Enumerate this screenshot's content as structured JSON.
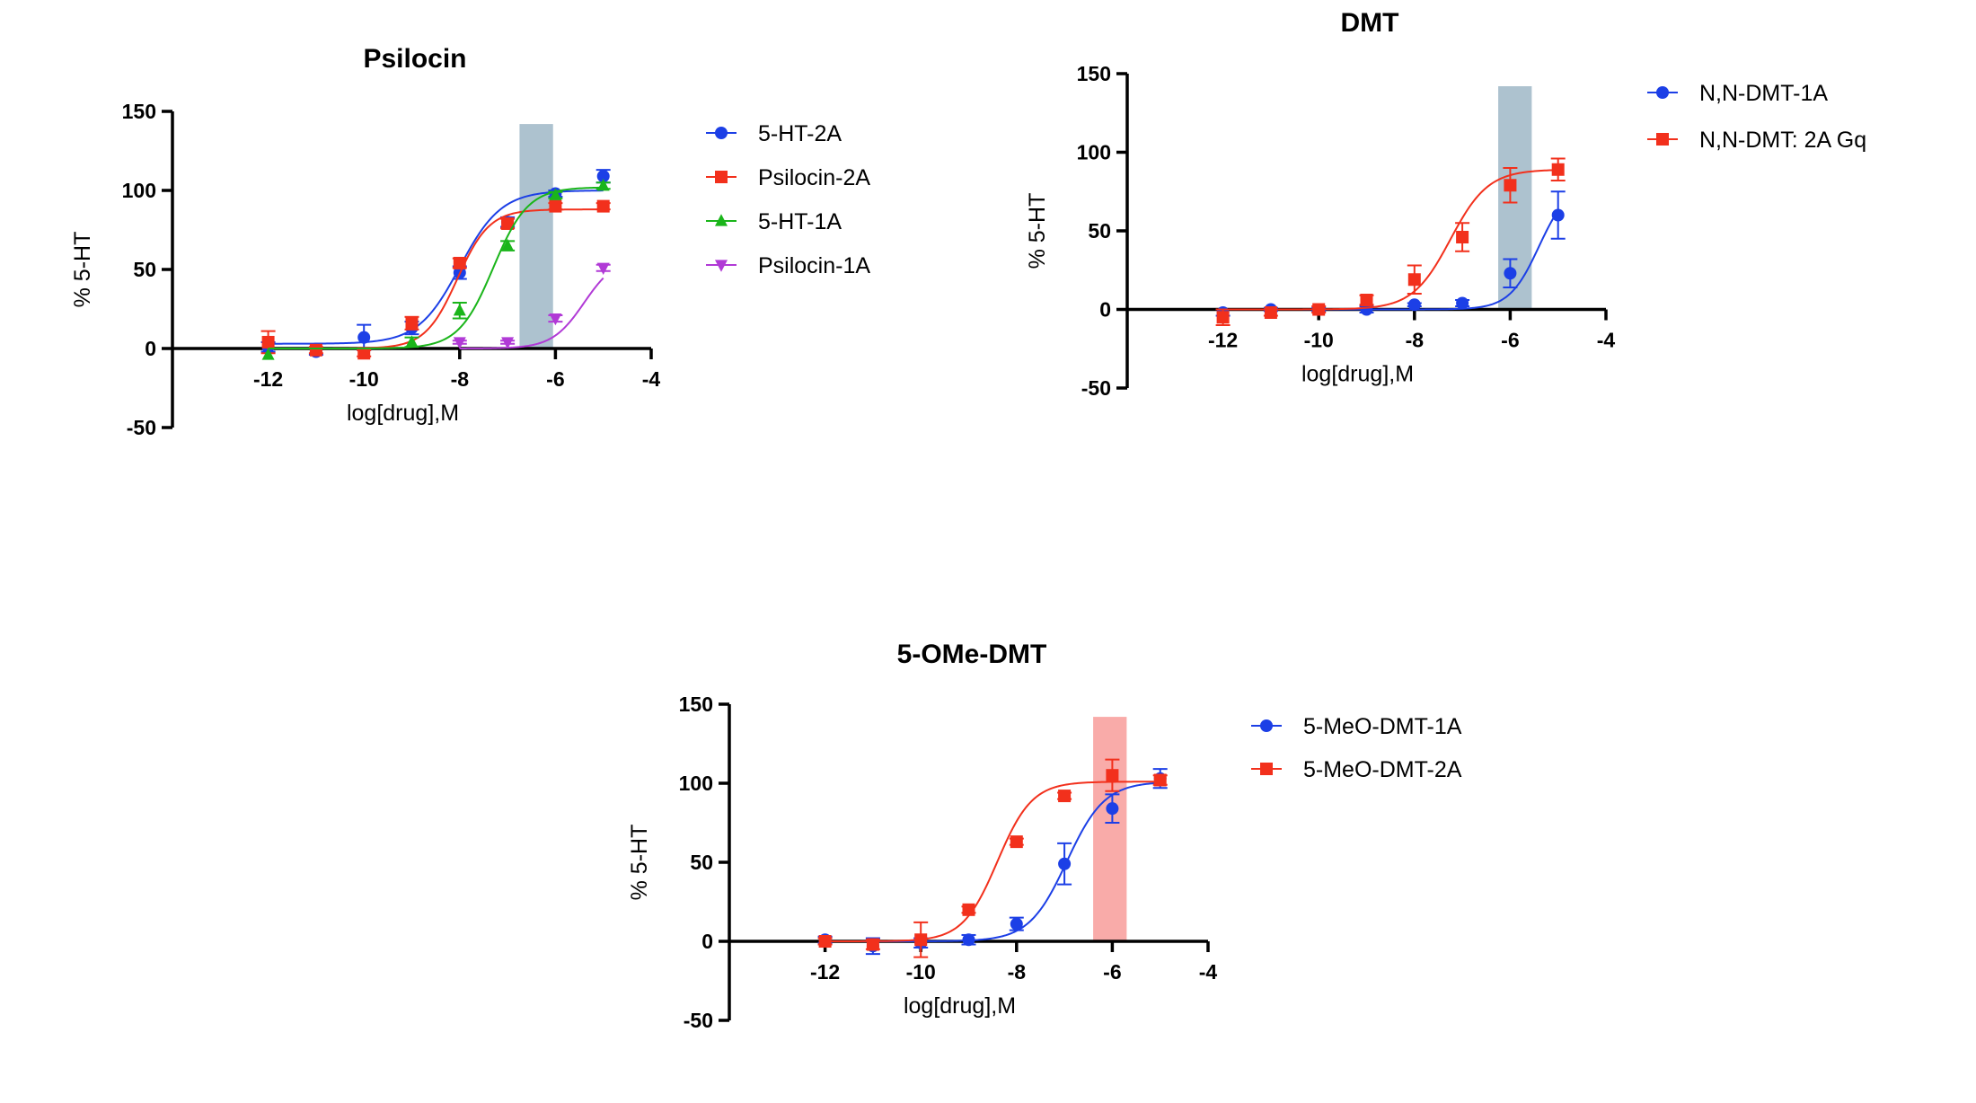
{
  "chart_data": [
    {
      "type": "scatter",
      "title": "Psilocin",
      "xlabel": "log[drug],M",
      "ylabel": "% 5-HT",
      "xlim": [
        -14,
        -4
      ],
      "ylim": [
        -50,
        150
      ],
      "x_ticks": [
        "-12",
        "-10",
        "-8",
        "-6",
        "-4"
      ],
      "y_ticks": [
        "150",
        "100",
        "50",
        "0",
        "-50"
      ],
      "highlight_band": {
        "x_range": [
          -6.75,
          -6.05
        ],
        "color": "#a9bfcc"
      },
      "legend_position": "right",
      "series": [
        {
          "name": "5-HT-2A",
          "color": "#1c3fe6",
          "marker": "circle",
          "x": [
            -12,
            -11,
            -10,
            -9,
            -8,
            -7,
            -6,
            -5
          ],
          "y": [
            1,
            -2,
            7,
            13,
            48,
            80,
            98,
            109
          ],
          "err": [
            3,
            2,
            8,
            4,
            4,
            3,
            2,
            4
          ],
          "fit": {
            "bottom": 3,
            "top": 100,
            "logEC50": -8.0,
            "hill": 1.0
          }
        },
        {
          "name": "Psilocin-2A",
          "color": "#f2301c",
          "marker": "square",
          "x": [
            -12,
            -11,
            -10,
            -9,
            -8,
            -7,
            -6,
            -5
          ],
          "y": [
            4,
            -1,
            -3,
            16,
            54,
            79,
            90,
            90
          ],
          "err": [
            7,
            2,
            2,
            4,
            3,
            3,
            2,
            2
          ],
          "fit": {
            "bottom": 0,
            "top": 88,
            "logEC50": -8.05,
            "hill": 1.3
          }
        },
        {
          "name": "5-HT-1A",
          "color": "#1ab51a",
          "marker": "triangle",
          "x": [
            -12,
            -9,
            -8,
            -7,
            -6,
            -5
          ],
          "y": [
            -4,
            4,
            24,
            65,
            97,
            103
          ],
          "err": [
            0,
            3,
            5,
            3,
            2,
            2
          ],
          "fit": {
            "bottom": 0,
            "top": 102,
            "logEC50": -7.3,
            "hill": 1.2
          }
        },
        {
          "name": "Psilocin-1A",
          "color": "#b13ad6",
          "marker": "triangle-down",
          "x": [
            -8,
            -7,
            -6,
            -5
          ],
          "y": [
            4,
            4,
            19,
            51
          ],
          "err": [
            1,
            1,
            2,
            2
          ],
          "fit": {
            "bottom": 0,
            "top": 58,
            "logEC50": -5.4,
            "hill": 1.3
          }
        }
      ]
    },
    {
      "type": "scatter",
      "title": "DMT",
      "xlabel": "log[drug],M",
      "ylabel": "% 5-HT",
      "xlim": [
        -14,
        -4
      ],
      "ylim": [
        -50,
        150
      ],
      "x_ticks": [
        "-12",
        "-10",
        "-8",
        "-6",
        "-4"
      ],
      "y_ticks": [
        "150",
        "100",
        "50",
        "0",
        "-50"
      ],
      "highlight_band": {
        "x_range": [
          -6.25,
          -5.55
        ],
        "color": "#a9bfcc"
      },
      "legend_position": "right",
      "series": [
        {
          "name": "N,N-DMT-1A",
          "color": "#1c3fe6",
          "marker": "circle",
          "x": [
            -12,
            -11,
            -10,
            -9,
            -8,
            -7,
            -6,
            -5
          ],
          "y": [
            -2,
            0,
            0,
            0,
            3,
            4,
            23,
            60
          ],
          "err": [
            2,
            1,
            1,
            2,
            1,
            2,
            9,
            15
          ],
          "fit": {
            "bottom": 0,
            "top": 80,
            "logEC50": -5.4,
            "hill": 1.4
          }
        },
        {
          "name": "N,N-DMT: 2A Gq",
          "color": "#f2301c",
          "marker": "square",
          "x": [
            -12,
            -11,
            -10,
            -9,
            -8,
            -7,
            -6,
            -5
          ],
          "y": [
            -5,
            -2,
            0,
            6,
            19,
            46,
            79,
            89
          ],
          "err": [
            5,
            2,
            2,
            3,
            9,
            9,
            11,
            7
          ],
          "fit": {
            "bottom": 0,
            "top": 89,
            "logEC50": -7.25,
            "hill": 1.1
          }
        }
      ]
    },
    {
      "type": "scatter",
      "title": "5-OMe-DMT",
      "xlabel": "log[drug],M",
      "ylabel": "% 5-HT",
      "xlim": [
        -14,
        -4
      ],
      "ylim": [
        -50,
        150
      ],
      "x_ticks": [
        "-12",
        "-10",
        "-8",
        "-6",
        "-4"
      ],
      "y_ticks": [
        "150",
        "100",
        "50",
        "0",
        "-50"
      ],
      "highlight_band": {
        "x_range": [
          -6.4,
          -5.7
        ],
        "color": "#f9a7a4"
      },
      "legend_position": "right",
      "series": [
        {
          "name": "5-MeO-DMT-1A",
          "color": "#1c3fe6",
          "marker": "circle",
          "x": [
            -12,
            -11,
            -10,
            -9,
            -8,
            -7,
            -6,
            -5
          ],
          "y": [
            1,
            -3,
            -1,
            1,
            11,
            49,
            84,
            103
          ],
          "err": [
            2,
            5,
            3,
            3,
            4,
            13,
            9,
            6
          ],
          "fit": {
            "bottom": 0,
            "top": 101,
            "logEC50": -6.95,
            "hill": 1.1
          }
        },
        {
          "name": "5-MeO-DMT-2A",
          "color": "#f2301c",
          "marker": "square",
          "x": [
            -12,
            -11,
            -10,
            -9,
            -8,
            -7,
            -6,
            -5
          ],
          "y": [
            0,
            -2,
            1,
            20,
            63,
            92,
            105,
            102
          ],
          "err": [
            2,
            3,
            11,
            2,
            2,
            2,
            10,
            3
          ],
          "fit": {
            "bottom": 0,
            "top": 101,
            "logEC50": -8.4,
            "hill": 1.2
          }
        }
      ]
    }
  ]
}
